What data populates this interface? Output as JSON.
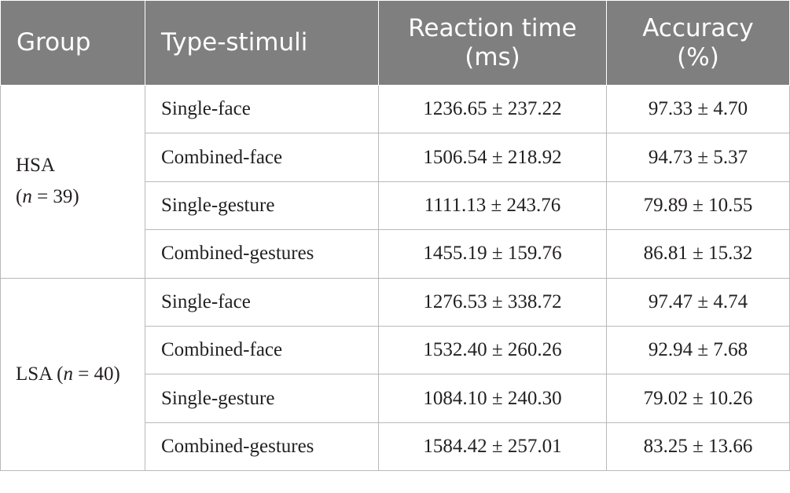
{
  "headers": {
    "group": "Group",
    "type": "Type-stimuli",
    "rt_line1": "Reaction time",
    "rt_line2": "(ms)",
    "acc_line1": "Accuracy",
    "acc_line2": "(%)"
  },
  "groups": [
    {
      "name": "HSA",
      "n_prefix": "(",
      "n_var": "n",
      "n_suffix": " = 39)",
      "rows": [
        {
          "type": "Single-face",
          "rt": "1236.65 ± 237.22",
          "acc": "97.33 ± 4.70"
        },
        {
          "type": "Combined-face",
          "rt": "1506.54 ± 218.92",
          "acc": "94.73 ± 5.37"
        },
        {
          "type": "Single-gesture",
          "rt": "1111.13 ± 243.76",
          "acc": "79.89 ± 10.55"
        },
        {
          "type": "Combined-gestures",
          "rt": "1455.19 ± 159.76",
          "acc": "86.81 ± 15.32"
        }
      ]
    },
    {
      "name": "LSA",
      "n_prefix": " (",
      "n_var": "n",
      "n_suffix": " = 40)",
      "rows": [
        {
          "type": "Single-face",
          "rt": "1276.53 ± 338.72",
          "acc": "97.47 ± 4.74"
        },
        {
          "type": "Combined-face",
          "rt": "1532.40 ± 260.26",
          "acc": "92.94 ± 7.68"
        },
        {
          "type": "Single-gesture",
          "rt": "1084.10 ± 240.30",
          "acc": "79.02 ± 10.26"
        },
        {
          "type": "Combined-gestures",
          "rt": "1584.42 ± 257.01",
          "acc": "83.25 ± 13.66"
        }
      ]
    }
  ]
}
